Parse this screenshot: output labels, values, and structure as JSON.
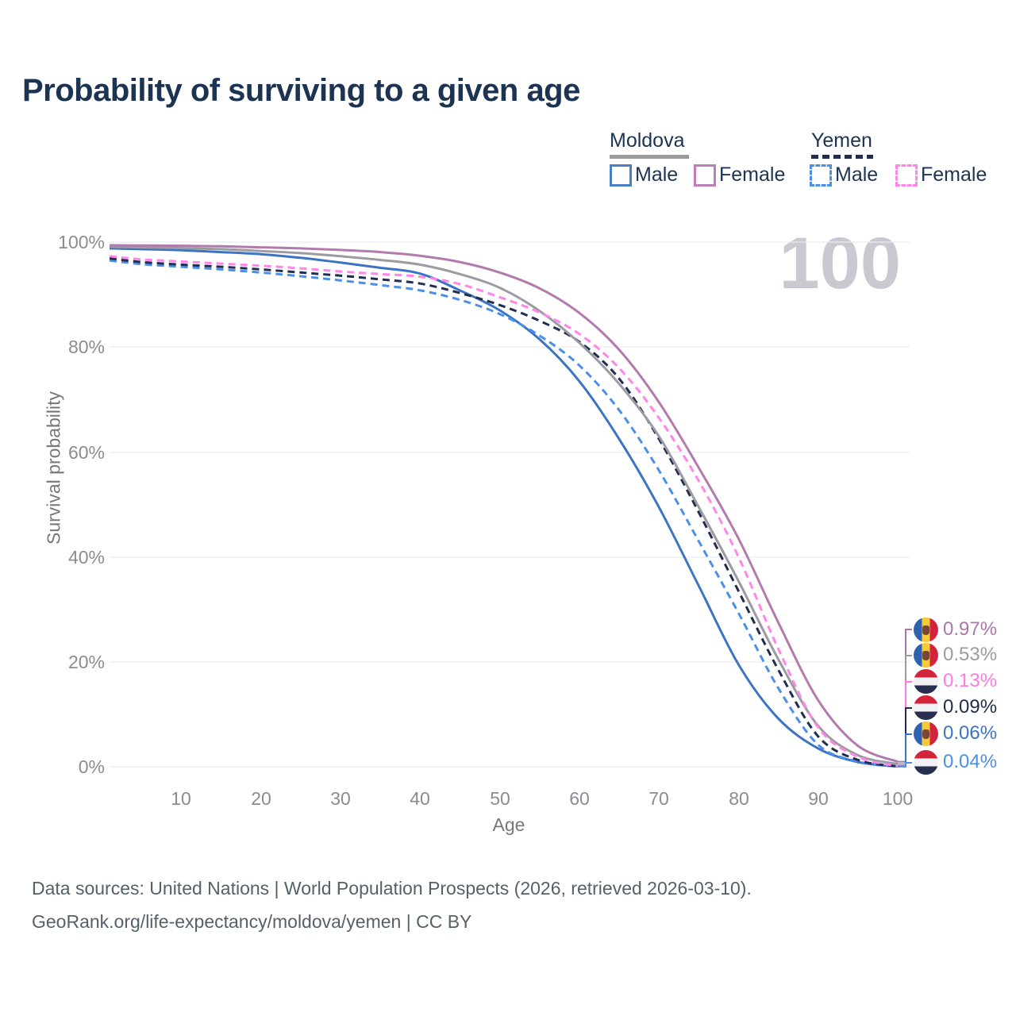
{
  "title": "Probability of surviving to a given age",
  "watermark_age": "100",
  "legend": {
    "moldova": {
      "name": "Moldova",
      "male_label": "Male",
      "female_label": "Female"
    },
    "yemen": {
      "name": "Yemen",
      "male_label": "Male",
      "female_label": "Female"
    }
  },
  "axes": {
    "y_label": "Survival probability",
    "x_label": "Age",
    "y_ticks": [
      "100%",
      "80%",
      "60%",
      "40%",
      "20%",
      "0%"
    ],
    "x_ticks": [
      "10",
      "20",
      "30",
      "40",
      "50",
      "60",
      "70",
      "80",
      "90",
      "100"
    ]
  },
  "colors": {
    "moldova_female": "#b27bae",
    "moldova_all": "#9b9ba1",
    "moldova_male": "#3b74c2",
    "yemen_female": "#ff85e8",
    "yemen_all": "#1f2d50",
    "yemen_male": "#4b8fe8",
    "grid": "#ebecf1",
    "title_text": "#1c3452",
    "watermark": "#c9c9d1"
  },
  "chart_data": {
    "type": "line",
    "title": "Probability of surviving to a given age",
    "xlabel": "Age",
    "ylabel": "Survival probability",
    "xlim": [
      1,
      100
    ],
    "ylim_percent": [
      0,
      100
    ],
    "grid": "horizontal-only",
    "legend_position": "top-right",
    "x_ages": [
      1,
      5,
      10,
      15,
      20,
      25,
      30,
      35,
      40,
      45,
      50,
      55,
      60,
      65,
      70,
      75,
      80,
      85,
      90,
      95,
      100
    ],
    "series": [
      {
        "name": "Moldova Male",
        "country": "Moldova",
        "sex": "Male",
        "style": "solid",
        "color": "#3b74c2",
        "values_percent": [
          98.8,
          98.65,
          98.45,
          98.1,
          97.7,
          97.0,
          96.1,
          95.1,
          94.0,
          90.8,
          87.0,
          81.5,
          73.5,
          62.5,
          49.5,
          34.5,
          19.5,
          9.2,
          3.5,
          0.9,
          0.06
        ]
      },
      {
        "name": "Yemen Male",
        "country": "Yemen",
        "sex": "Male",
        "style": "dashed",
        "color": "#4b8fe8",
        "values_percent": [
          96.5,
          95.8,
          95.3,
          94.8,
          94.2,
          93.5,
          92.7,
          91.8,
          90.8,
          89.0,
          86.3,
          82.2,
          76.5,
          68.0,
          56.5,
          43.0,
          29.3,
          15.0,
          4.2,
          1.0,
          0.04
        ]
      },
      {
        "name": "Yemen Both sexes",
        "country": "Yemen",
        "sex": "Both",
        "style": "dashed",
        "color": "#1f2d50",
        "values_percent": [
          96.9,
          96.2,
          95.7,
          95.3,
          94.8,
          94.2,
          93.6,
          92.9,
          92.1,
          90.3,
          88.0,
          85.0,
          81.0,
          74.0,
          62.5,
          48.5,
          33.5,
          18.5,
          5.8,
          1.3,
          0.09
        ]
      },
      {
        "name": "Moldova Both sexes",
        "country": "Moldova",
        "sex": "Both",
        "style": "solid",
        "color": "#9b9ba1",
        "values_percent": [
          99.1,
          99.0,
          98.85,
          98.65,
          98.3,
          97.9,
          97.3,
          96.6,
          95.7,
          93.9,
          91.3,
          86.9,
          80.8,
          73.0,
          63.0,
          49.5,
          35.4,
          20.5,
          7.8,
          2.2,
          0.53
        ]
      },
      {
        "name": "Yemen Female",
        "country": "Yemen",
        "sex": "Female",
        "style": "dashed",
        "color": "#ff85e8",
        "values_percent": [
          97.3,
          96.7,
          96.3,
          95.9,
          95.5,
          95.0,
          94.4,
          93.9,
          93.4,
          92.0,
          89.5,
          86.6,
          82.5,
          76.0,
          66.5,
          54.5,
          40.0,
          22.5,
          7.5,
          1.9,
          0.13
        ]
      },
      {
        "name": "Moldova Female",
        "country": "Moldova",
        "sex": "Female",
        "style": "solid",
        "color": "#b27bae",
        "values_percent": [
          99.4,
          99.35,
          99.3,
          99.2,
          99.0,
          98.8,
          98.5,
          98.1,
          97.4,
          96.2,
          94.2,
          91.2,
          86.5,
          79.5,
          69.5,
          57.0,
          43.5,
          27.5,
          12.7,
          4.0,
          0.97
        ]
      }
    ]
  },
  "end_labels": [
    {
      "value": "0.97%",
      "flag": "moldova",
      "series": "Moldova Female",
      "color": "#ab76ab",
      "end_percent": 0.97
    },
    {
      "value": "0.53%",
      "flag": "moldova",
      "series": "Moldova Both sexes",
      "color": "#9b9ba1",
      "end_percent": 0.53
    },
    {
      "value": "0.13%",
      "flag": "yemen",
      "series": "Yemen Female",
      "color": "#ff7ae4",
      "end_percent": 0.13
    },
    {
      "value": "0.09%",
      "flag": "yemen",
      "series": "Yemen Both sexes",
      "color": "#222c49",
      "end_percent": 0.09
    },
    {
      "value": "0.06%",
      "flag": "moldova",
      "series": "Moldova Male",
      "color": "#3b74c2",
      "end_percent": 0.06
    },
    {
      "value": "0.04%",
      "flag": "yemen",
      "series": "Yemen Male",
      "color": "#4b8fe8",
      "end_percent": 0.04
    }
  ],
  "source": {
    "line1": "Data sources: United Nations | World Population Prospects (2026, retrieved 2026-03-10).",
    "line2": "GeoRank.org/life-expectancy/moldova/yemen | CC BY"
  }
}
